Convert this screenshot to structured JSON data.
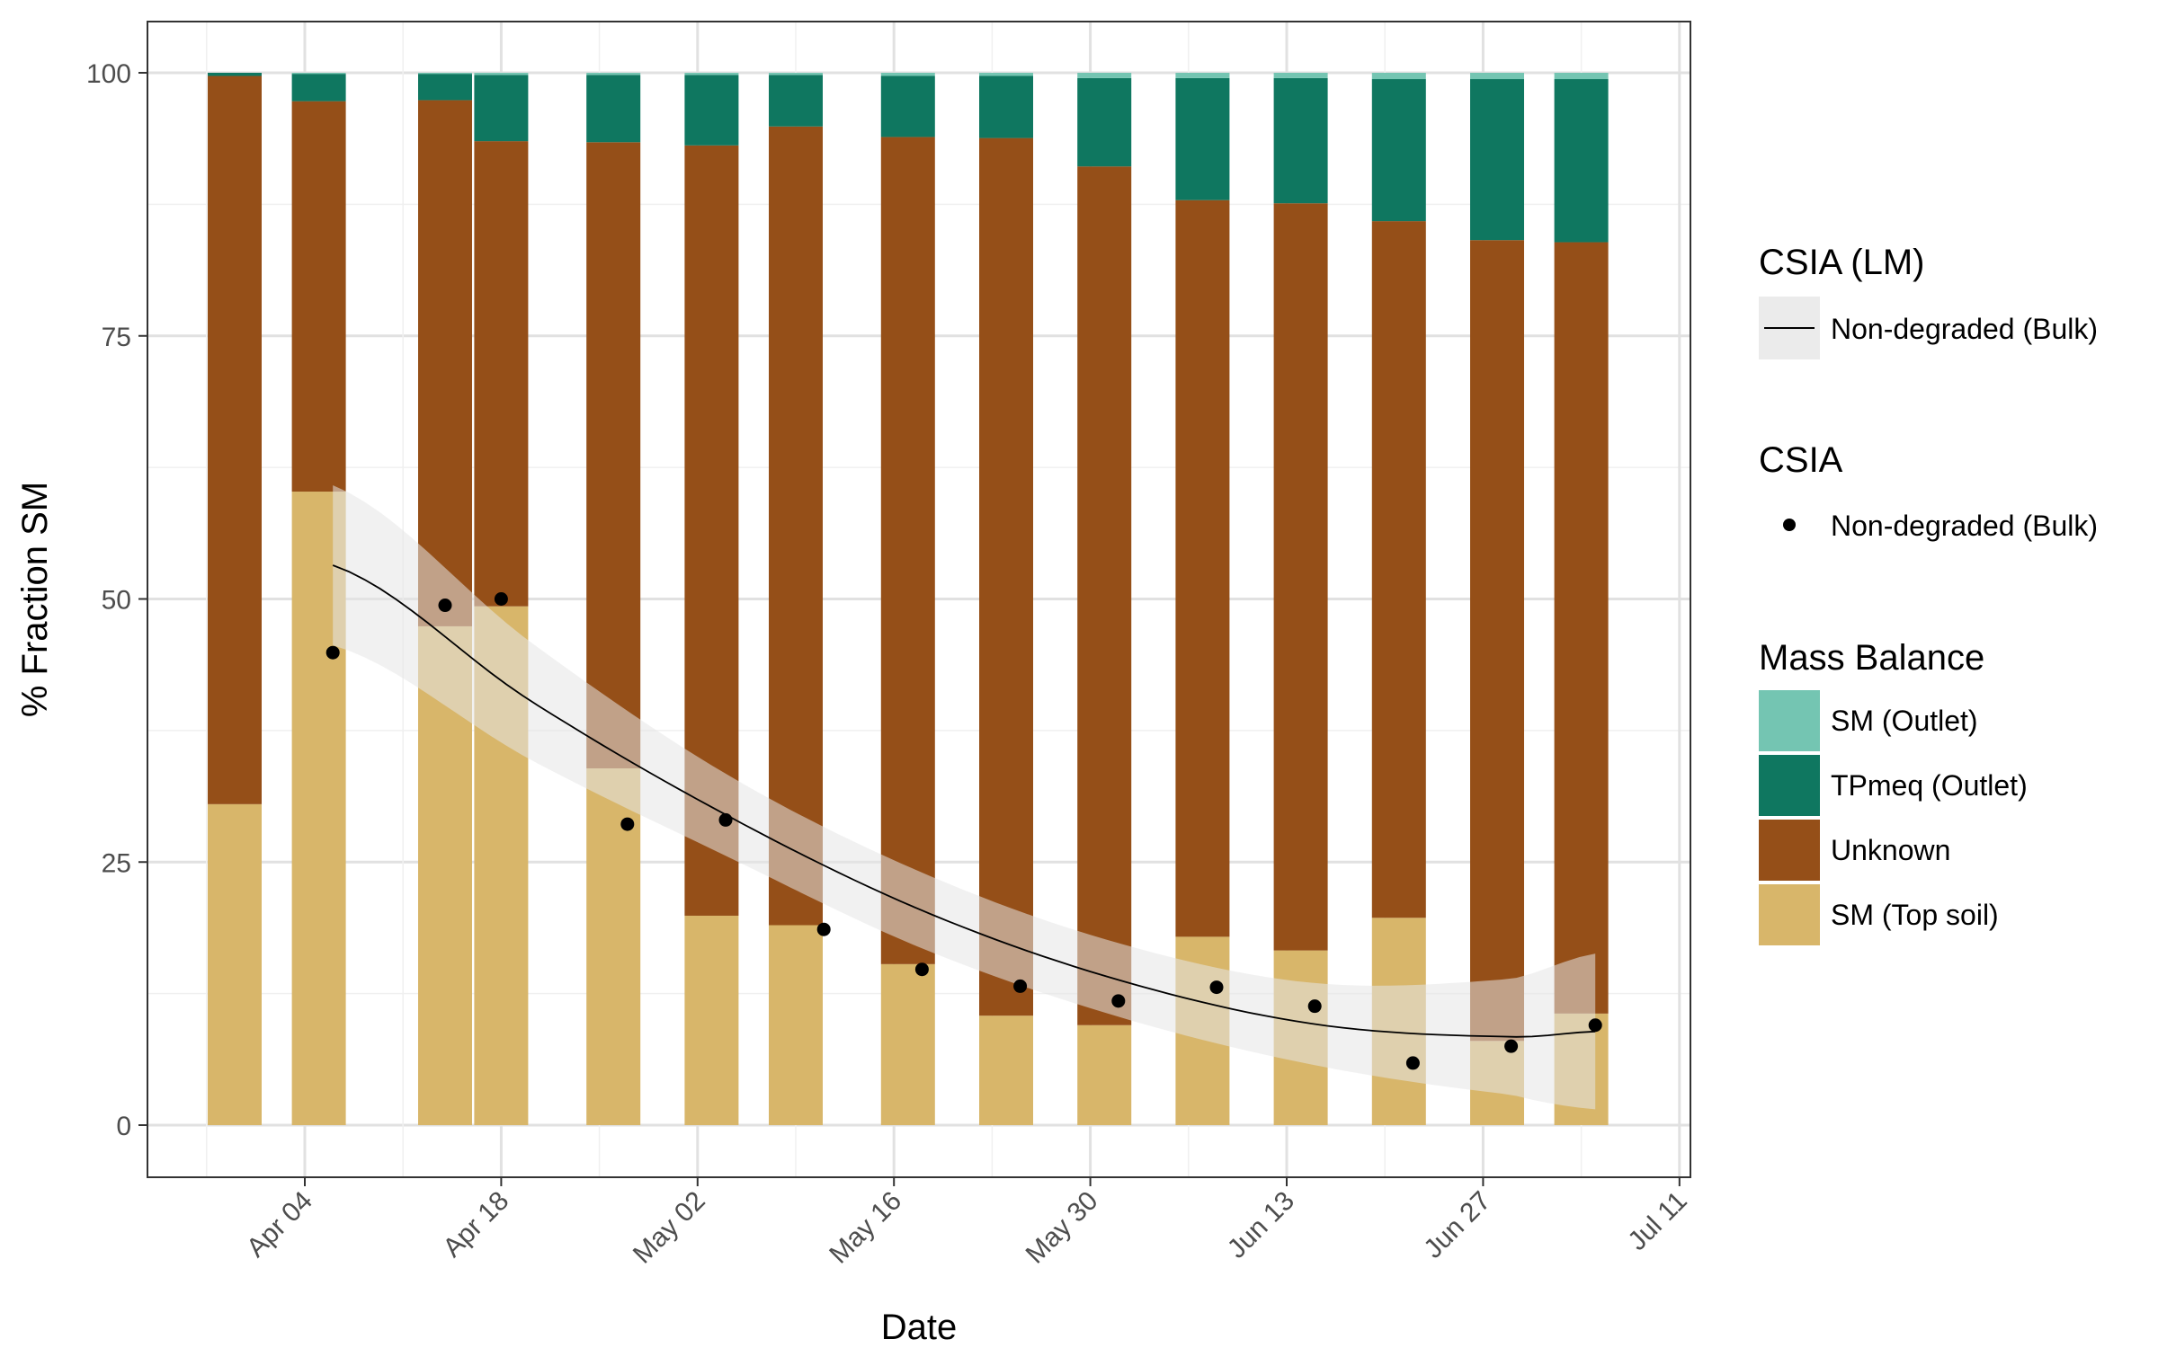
{
  "chart_data": {
    "type": "bar",
    "stacked": true,
    "xlabel": "Date",
    "ylabel": "% Fraction SM",
    "ylim": [
      0,
      100
    ],
    "y_ticks": [
      0,
      25,
      50,
      75,
      100
    ],
    "x_ticks": [
      "Apr 04",
      "Apr 18",
      "May 02",
      "May 16",
      "May 30",
      "Jun 13",
      "Jun 27",
      "Jul 11"
    ],
    "grid": true,
    "legend_position": "right",
    "categories": [
      "Mar 30",
      "Apr 05",
      "Apr 14",
      "Apr 18",
      "Apr 26",
      "May 03",
      "May 09",
      "May 17",
      "May 24",
      "May 31",
      "Jun 07",
      "Jun 14",
      "Jun 21",
      "Jun 28",
      "Jul 04"
    ],
    "series": [
      {
        "name": "SM (Top soil)",
        "color": "#d8b66a",
        "values": [
          30.5,
          60.2,
          47.4,
          49.3,
          33.9,
          19.9,
          19.0,
          15.3,
          10.4,
          9.5,
          17.9,
          16.6,
          19.7,
          8.0,
          10.6
        ]
      },
      {
        "name": "Unknown",
        "color": "#954f18",
        "values": [
          69.2,
          37.1,
          50.0,
          44.2,
          59.5,
          73.2,
          75.9,
          78.6,
          83.4,
          81.6,
          70.0,
          71.0,
          66.2,
          76.1,
          73.3
        ]
      },
      {
        "name": "TPmeq (Outlet)",
        "color": "#0f7760",
        "values": [
          0.3,
          2.6,
          2.5,
          6.3,
          6.4,
          6.7,
          4.9,
          5.8,
          5.9,
          8.4,
          11.6,
          11.9,
          13.5,
          15.3,
          15.5
        ]
      },
      {
        "name": "SM (Outlet)",
        "color": "#74c5b2",
        "values": [
          0.0,
          0.1,
          0.1,
          0.2,
          0.2,
          0.2,
          0.2,
          0.3,
          0.3,
          0.5,
          0.5,
          0.5,
          0.6,
          0.6,
          0.6
        ]
      }
    ],
    "csia_points": {
      "name": "Non-degraded (Bulk)",
      "dates": [
        "Apr 06",
        "Apr 14",
        "Apr 18",
        "Apr 27",
        "May 04",
        "May 11",
        "May 18",
        "May 25",
        "Jun 01",
        "Jun 08",
        "Jun 15",
        "Jun 22",
        "Jun 29",
        "Jul 05"
      ],
      "values": [
        44.9,
        49.4,
        50.0,
        28.6,
        29.0,
        18.6,
        14.8,
        13.2,
        11.8,
        13.1,
        11.3,
        5.9,
        7.5,
        9.5
      ]
    },
    "csia_lm_fit": {
      "name": "Non-degraded (Bulk)",
      "dates": [
        "Apr 06",
        "Apr 20",
        "May 04",
        "May 18",
        "Jun 01",
        "Jun 15",
        "Jun 29",
        "Jul 05"
      ],
      "fit": [
        53.2,
        40.4,
        29.5,
        20.4,
        13.8,
        9.6,
        8.4,
        8.9
      ],
      "ci_lower": [
        45.6,
        34.8,
        25.6,
        16.8,
        10.3,
        5.7,
        2.9,
        1.5
      ],
      "ci_upper": [
        60.8,
        46.0,
        33.4,
        24.0,
        17.3,
        13.5,
        13.9,
        16.3
      ]
    }
  },
  "legend": {
    "lm": {
      "title": "CSIA (LM)",
      "label": "Non-degraded (Bulk)"
    },
    "points": {
      "title": "CSIA",
      "label": "Non-degraded (Bulk)"
    },
    "mass_balance": {
      "title": "Mass Balance",
      "items": [
        {
          "label": "SM (Outlet)",
          "color": "#74c5b2"
        },
        {
          "label": "TPmeq (Outlet)",
          "color": "#0f7760"
        },
        {
          "label": "Unknown",
          "color": "#954f18"
        },
        {
          "label": "SM (Top soil)",
          "color": "#d8b66a"
        }
      ]
    }
  }
}
